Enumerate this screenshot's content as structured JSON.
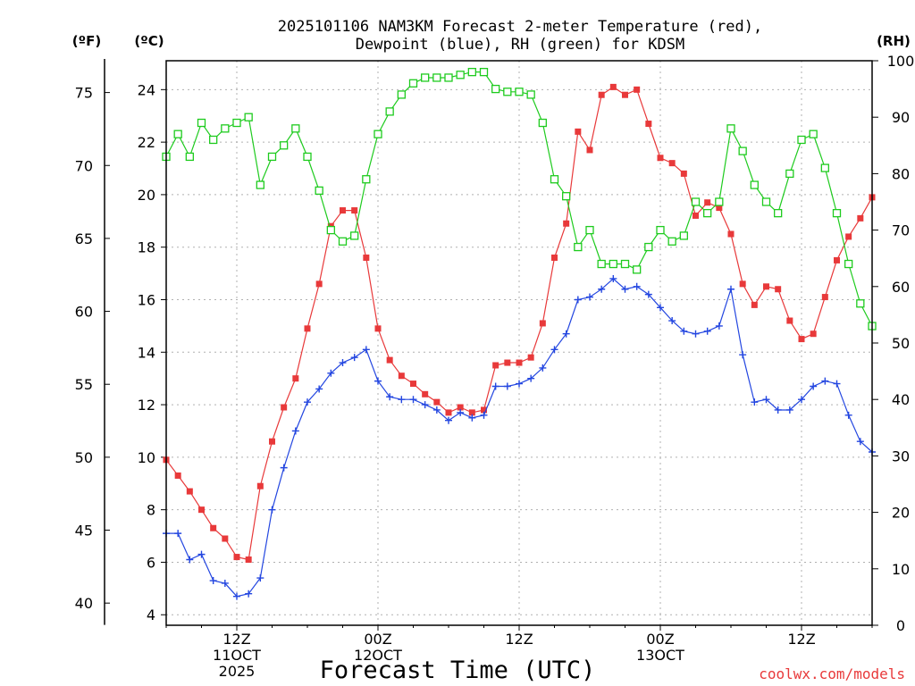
{
  "chart_data": {
    "type": "line",
    "title_line1": "2025101106 NAM3KM Forecast 2-meter Temperature (red),",
    "title_line2": "Dewpoint (blue), RH (green) for KDSM",
    "xlabel": "Forecast Time (UTC)",
    "credit": "coolwx.com/models",
    "unit_labels": {
      "fahrenheit": "(ºF)",
      "celsius": "(ºC)",
      "rh": "(RH)"
    },
    "xlim": [
      6,
      66
    ],
    "x_ticks": [
      {
        "x": 12,
        "lines": [
          "12Z",
          "11OCT",
          "2025"
        ]
      },
      {
        "x": 24,
        "lines": [
          "00Z",
          "12OCT"
        ]
      },
      {
        "x": 36,
        "lines": [
          "12Z"
        ]
      },
      {
        "x": 48,
        "lines": [
          "00Z",
          "13OCT"
        ]
      },
      {
        "x": 60,
        "lines": [
          "12Z"
        ]
      }
    ],
    "y_celsius": {
      "min": 3.6,
      "max": 25.1,
      "ticks": [
        "4",
        "6",
        "8",
        "10",
        "12",
        "14",
        "16",
        "18",
        "20",
        "22",
        "24"
      ]
    },
    "y_fahrenheit": {
      "ticks": [
        "40",
        "45",
        "50",
        "55",
        "60",
        "65",
        "70",
        "75"
      ]
    },
    "y_rh": {
      "min": 0,
      "max": 100,
      "ticks": [
        "0",
        "10",
        "20",
        "30",
        "40",
        "50",
        "60",
        "70",
        "80",
        "90",
        "100"
      ]
    },
    "series": [
      {
        "name": "Temperature",
        "unit": "C",
        "color": "#e8393a",
        "marker": "filled-square",
        "x": [
          6,
          7,
          8,
          9,
          10,
          11,
          12,
          13,
          14,
          15,
          16,
          17,
          18,
          19,
          20,
          21,
          22,
          23,
          24,
          25,
          26,
          27,
          28,
          29,
          30,
          31,
          32,
          33,
          34,
          35,
          36,
          37,
          38,
          39,
          40,
          41,
          42,
          43,
          44,
          45,
          46,
          47,
          48,
          49,
          50,
          51,
          52,
          53,
          54,
          55,
          56,
          57,
          58,
          59,
          60,
          61,
          62,
          63,
          64,
          65,
          66
        ],
        "values": [
          9.9,
          9.3,
          8.7,
          8.0,
          7.3,
          6.9,
          6.2,
          6.1,
          8.9,
          10.6,
          11.9,
          13.0,
          14.9,
          16.6,
          18.8,
          19.4,
          19.4,
          17.6,
          14.9,
          13.7,
          13.1,
          12.8,
          12.4,
          12.1,
          11.7,
          11.9,
          11.7,
          11.8,
          13.5,
          13.6,
          13.6,
          13.8,
          15.1,
          17.6,
          18.9,
          22.4,
          21.7,
          23.8,
          24.1,
          23.8,
          24.0,
          22.7,
          21.4,
          21.2,
          20.8,
          19.2,
          19.7,
          19.5,
          18.5,
          16.6,
          15.8,
          16.5,
          16.4,
          15.2,
          14.5,
          14.7,
          16.1,
          17.5,
          18.4,
          19.1,
          19.9
        ]
      },
      {
        "name": "Dewpoint",
        "unit": "C",
        "color": "#2346e0",
        "marker": "plus",
        "x": [
          6,
          7,
          8,
          9,
          10,
          11,
          12,
          13,
          14,
          15,
          16,
          17,
          18,
          19,
          20,
          21,
          22,
          23,
          24,
          25,
          26,
          27,
          28,
          29,
          30,
          31,
          32,
          33,
          34,
          35,
          36,
          37,
          38,
          39,
          40,
          41,
          42,
          43,
          44,
          45,
          46,
          47,
          48,
          49,
          50,
          51,
          52,
          53,
          54,
          55,
          56,
          57,
          58,
          59,
          60,
          61,
          62,
          63,
          64,
          65,
          66
        ],
        "values": [
          7.1,
          7.1,
          6.1,
          6.3,
          5.3,
          5.2,
          4.7,
          4.8,
          5.4,
          8.0,
          9.6,
          11.0,
          12.1,
          12.6,
          13.2,
          13.6,
          13.8,
          14.1,
          12.9,
          12.3,
          12.2,
          12.2,
          12.0,
          11.8,
          11.4,
          11.7,
          11.5,
          11.6,
          12.7,
          12.7,
          12.8,
          13.0,
          13.4,
          14.1,
          14.7,
          16.0,
          16.1,
          16.4,
          16.8,
          16.4,
          16.5,
          16.2,
          15.7,
          15.2,
          14.8,
          14.7,
          14.8,
          15.0,
          16.4,
          13.9,
          12.1,
          12.2,
          11.8,
          11.8,
          12.2,
          12.7,
          12.9,
          12.8,
          11.6,
          10.6,
          10.2
        ]
      },
      {
        "name": "RH",
        "unit": "%",
        "color": "#1ecb1e",
        "marker": "open-square",
        "x": [
          6,
          7,
          8,
          9,
          10,
          11,
          12,
          13,
          14,
          15,
          16,
          17,
          18,
          19,
          20,
          21,
          22,
          23,
          24,
          25,
          26,
          27,
          28,
          29,
          30,
          31,
          32,
          33,
          34,
          35,
          36,
          37,
          38,
          39,
          40,
          41,
          42,
          43,
          44,
          45,
          46,
          47,
          48,
          49,
          50,
          51,
          52,
          53,
          54,
          55,
          56,
          57,
          58,
          59,
          60,
          61,
          62,
          63,
          64,
          65,
          66
        ],
        "values": [
          83,
          87,
          83,
          89,
          86,
          88,
          89,
          90,
          78,
          83,
          85,
          88,
          83,
          77,
          70,
          68,
          69,
          79,
          87,
          91,
          94,
          96,
          97,
          97,
          97,
          97.5,
          98,
          98,
          95,
          94.5,
          94.5,
          94,
          89,
          79,
          76,
          67,
          70,
          64,
          64,
          64,
          63,
          67,
          70,
          68,
          69,
          75,
          73,
          75,
          88,
          84,
          78,
          75,
          73,
          80,
          86,
          87,
          81,
          73,
          64,
          57,
          53
        ]
      }
    ]
  }
}
